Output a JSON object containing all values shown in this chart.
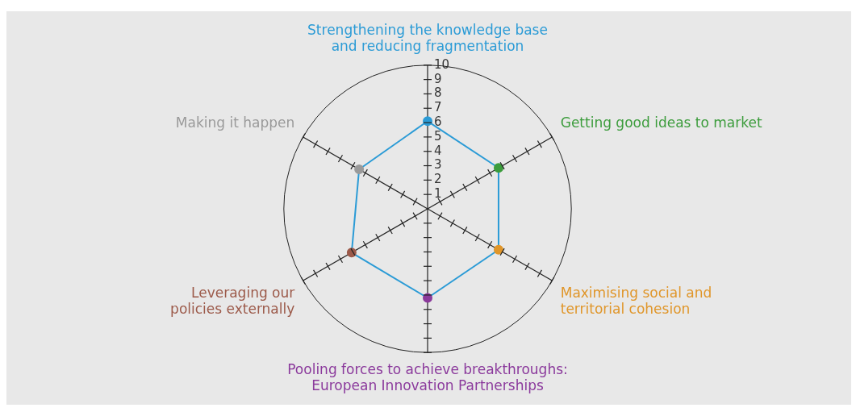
{
  "chart_data": {
    "type": "radar",
    "categories": [
      "Strengthening the knowledge base\nand reducing fragmentation",
      "Getting good ideas to market",
      "Maximising social and\nterritorial cohesion",
      "Pooling forces to achieve breakthroughs:\nEuropean Innovation Partnerships",
      "Leveraging our\npolicies externally",
      "Making it happen"
    ],
    "series": [
      {
        "colors": [
          "#2b9bd6",
          "#3c9c3c",
          "#e0962a",
          "#8b3a9c",
          "#9c5a4a",
          "#9a9a9a"
        ],
        "values": [
          6.1,
          5.7,
          5.7,
          6.2,
          6.1,
          5.5
        ]
      }
    ],
    "ylim": [
      0,
      10
    ],
    "yticks": [
      1,
      2,
      3,
      4,
      5,
      6,
      7,
      8,
      9,
      10
    ],
    "legend": false,
    "marker": "circle"
  }
}
